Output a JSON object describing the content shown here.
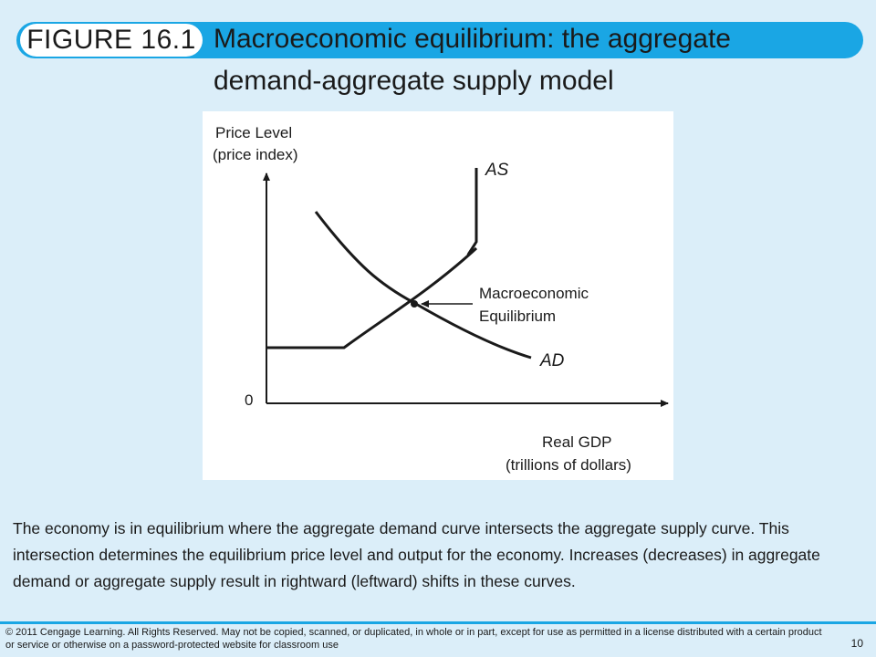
{
  "header": {
    "figure_label": "FIGURE 16.1",
    "title_line1": "Macroeconomic equilibrium: the aggregate",
    "title_line2": "demand-aggregate supply model"
  },
  "diagram": {
    "y_axis_label_line1": "Price Level",
    "y_axis_label_line2": "(price index)",
    "x_axis_label_line1": "Real GDP",
    "x_axis_label_line2": "(trillions of dollars)",
    "origin_label": "0",
    "as_label": "AS",
    "ad_label": "AD",
    "equilibrium_label_line1": "Macroeconomic",
    "equilibrium_label_line2": "Equilibrium"
  },
  "caption": "The economy is in equilibrium where the aggregate demand curve intersects the aggregate supply curve. This intersection determines the equilibrium price level and output for the economy. Increases (decreases) in aggregate demand or aggregate supply result in rightward (leftward) shifts in these curves.",
  "footer": {
    "copyright": "© 2011 Cengage Learning. All Rights Reserved. May not be copied, scanned, or duplicated, in whole or in part, except for use as permitted in a license distributed with a certain product or service or otherwise on a password-protected website for classroom use",
    "page_number": "10"
  },
  "colors": {
    "background": "#dbeef9",
    "accent": "#1aa6e4",
    "curve": "#1a1a1a"
  }
}
